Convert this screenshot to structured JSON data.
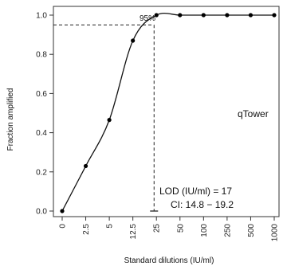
{
  "chart_data": {
    "type": "scatter",
    "title": "",
    "xlabel": "Standard dilutions (IU/ml)",
    "ylabel": "Fraction amplified",
    "x_tick_labels": [
      "0",
      "2.5",
      "5",
      "12.5",
      "25",
      "50",
      "100",
      "250",
      "500",
      "1000"
    ],
    "y_ticks": [
      0.0,
      0.2,
      0.4,
      0.6,
      0.8,
      1.0
    ],
    "y_tick_labels": [
      "0.0",
      "0.2",
      "0.4",
      "0.6",
      "0.8",
      "1.0"
    ],
    "ylim": [
      0,
      1
    ],
    "grid": false,
    "series": [
      {
        "values": [
          0.0,
          0.23,
          0.465,
          0.87,
          1.0,
          1.0,
          1.0,
          1.0,
          1.0,
          1.0
        ]
      }
    ],
    "fitted_curve": true,
    "reference_lines": {
      "level_label": "95%",
      "level_value": 0.95,
      "lod_position_index": 3.9
    },
    "annotations": {
      "instrument": "qTower",
      "lod": "LOD (IU/ml) = 17",
      "ci": "CI: 14.8 − 19.2"
    }
  }
}
